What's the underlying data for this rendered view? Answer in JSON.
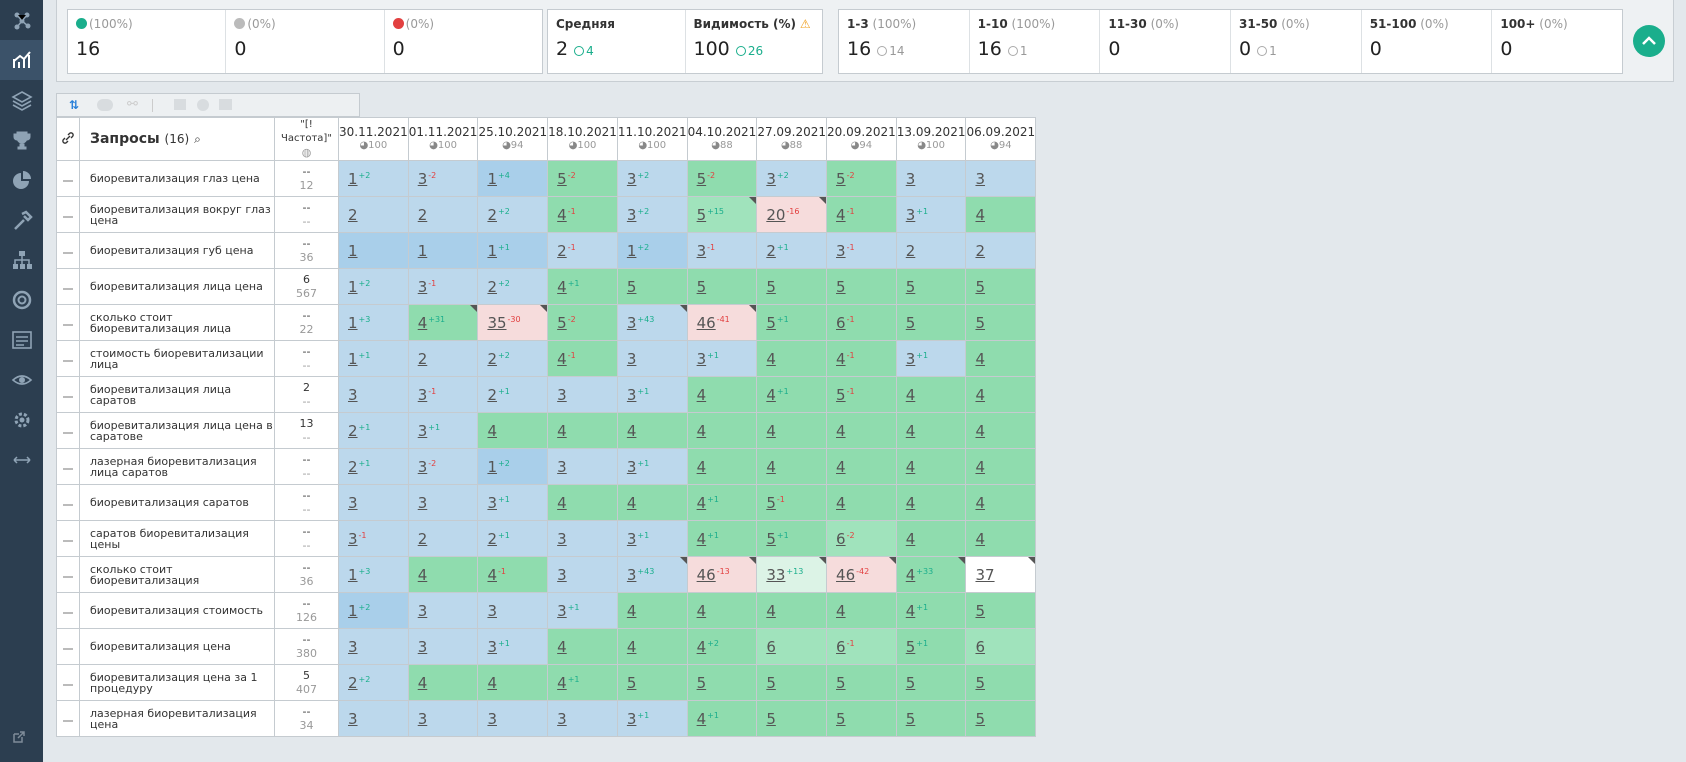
{
  "sidebar": {
    "items": [
      {
        "icon": "network-icon"
      },
      {
        "icon": "chart-growth-icon",
        "active": true
      },
      {
        "icon": "layers-icon"
      },
      {
        "icon": "trophy-icon"
      },
      {
        "icon": "pie-chart-icon"
      },
      {
        "icon": "hammer-icon"
      },
      {
        "icon": "sitemap-icon"
      },
      {
        "icon": "lifebuoy-icon"
      },
      {
        "icon": "list-settings-icon"
      },
      {
        "icon": "eye-icon"
      },
      {
        "icon": "gear-icon"
      },
      {
        "icon": "expand-arrows-icon"
      }
    ],
    "external_icon": "external-link-icon"
  },
  "summary": {
    "trend": [
      {
        "pct": "(100%)",
        "value": "16",
        "icon": "arrow-up-circle-icon"
      },
      {
        "pct": "(0%)",
        "value": "0",
        "icon": "minus-circle-icon"
      },
      {
        "pct": "(0%)",
        "value": "0",
        "icon": "arrow-down-circle-icon"
      }
    ],
    "avg": {
      "label": "Средняя",
      "value": "2",
      "delta": "4"
    },
    "visibility": {
      "label": "Видимость (%)",
      "value": "100",
      "delta": "26"
    },
    "ranges": [
      {
        "label": "1-3",
        "pct": "(100%)",
        "value": "16",
        "delta": "14"
      },
      {
        "label": "1-10",
        "pct": "(100%)",
        "value": "16",
        "delta": "1"
      },
      {
        "label": "11-30",
        "pct": "(0%)",
        "value": "0",
        "delta": ""
      },
      {
        "label": "31-50",
        "pct": "(0%)",
        "value": "0",
        "delta": "1"
      },
      {
        "label": "51-100",
        "pct": "(0%)",
        "value": "0",
        "delta": ""
      },
      {
        "label": "100+",
        "pct": "(0%)",
        "value": "0",
        "delta": ""
      }
    ]
  },
  "table": {
    "title": "Запросы",
    "count": "(16)",
    "freq_header": "\"[!Частота]\"",
    "dates": [
      {
        "date": "30.11.2021",
        "vis": "100"
      },
      {
        "date": "01.11.2021",
        "vis": "100"
      },
      {
        "date": "25.10.2021",
        "vis": "94"
      },
      {
        "date": "18.10.2021",
        "vis": "100"
      },
      {
        "date": "11.10.2021",
        "vis": "100"
      },
      {
        "date": "04.10.2021",
        "vis": "88"
      },
      {
        "date": "27.09.2021",
        "vis": "88"
      },
      {
        "date": "20.09.2021",
        "vis": "94"
      },
      {
        "date": "13.09.2021",
        "vis": "100"
      },
      {
        "date": "06.09.2021",
        "vis": "94"
      }
    ],
    "rows": [
      {
        "query": "биоревитализация глаз цена",
        "f1": "--",
        "f2": "12",
        "cells": [
          [
            "1",
            "+2",
            "b"
          ],
          [
            "3",
            "-2",
            "b"
          ],
          [
            "1",
            "+4",
            "b2"
          ],
          [
            "5",
            "-2",
            "g"
          ],
          [
            "3",
            "+2",
            "b"
          ],
          [
            "5",
            "-2",
            "g"
          ],
          [
            "3",
            "+2",
            "b"
          ],
          [
            "5",
            "-2",
            "g"
          ],
          [
            "3",
            "",
            "b"
          ],
          [
            "3",
            "",
            "b"
          ]
        ]
      },
      {
        "query": "биоревитализация вокруг глаз цена",
        "f1": "--",
        "f2": "--",
        "cells": [
          [
            "2",
            "",
            "b"
          ],
          [
            "2",
            "",
            "b"
          ],
          [
            "2",
            "+2",
            "b"
          ],
          [
            "4",
            "-1",
            "g"
          ],
          [
            "3",
            "+2",
            "b"
          ],
          [
            "5",
            "+15",
            "g2"
          ],
          [
            "20",
            "-16",
            "p"
          ],
          [
            "4",
            "-1",
            "g"
          ],
          [
            "3",
            "+1",
            "b"
          ],
          [
            "4",
            "",
            "g"
          ]
        ]
      },
      {
        "query": "биоревитализация губ цена",
        "f1": "--",
        "f2": "36",
        "cells": [
          [
            "1",
            "",
            "b2"
          ],
          [
            "1",
            "",
            "b2"
          ],
          [
            "1",
            "+1",
            "b2"
          ],
          [
            "2",
            "-1",
            "b"
          ],
          [
            "1",
            "+2",
            "b2"
          ],
          [
            "3",
            "-1",
            "b"
          ],
          [
            "2",
            "+1",
            "b"
          ],
          [
            "3",
            "-1",
            "b"
          ],
          [
            "2",
            "",
            "b"
          ],
          [
            "2",
            "",
            "b"
          ]
        ]
      },
      {
        "query": "биоревитализация лица цена",
        "f1": "6",
        "f2": "567",
        "cells": [
          [
            "1",
            "+2",
            "b"
          ],
          [
            "3",
            "-1",
            "b"
          ],
          [
            "2",
            "+2",
            "b"
          ],
          [
            "4",
            "+1",
            "g"
          ],
          [
            "5",
            "",
            "g"
          ],
          [
            "5",
            "",
            "g"
          ],
          [
            "5",
            "",
            "g"
          ],
          [
            "5",
            "",
            "g"
          ],
          [
            "5",
            "",
            "g"
          ],
          [
            "5",
            "",
            "g"
          ]
        ]
      },
      {
        "query": "сколько стоит биоревитализация лица",
        "f1": "--",
        "f2": "22",
        "cells": [
          [
            "1",
            "+3",
            "b"
          ],
          [
            "4",
            "+31",
            "g"
          ],
          [
            "35",
            "-30",
            "p"
          ],
          [
            "5",
            "-2",
            "g"
          ],
          [
            "3",
            "+43",
            "b"
          ],
          [
            "46",
            "-41",
            "p"
          ],
          [
            "5",
            "+1",
            "g"
          ],
          [
            "6",
            "-1",
            "g"
          ],
          [
            "5",
            "",
            "g"
          ],
          [
            "5",
            "",
            "g"
          ]
        ]
      },
      {
        "query": "стоимость биоревитализации лица",
        "f1": "--",
        "f2": "--",
        "cells": [
          [
            "1",
            "+1",
            "b"
          ],
          [
            "2",
            "",
            "b"
          ],
          [
            "2",
            "+2",
            "b"
          ],
          [
            "4",
            "-1",
            "g"
          ],
          [
            "3",
            "",
            "b"
          ],
          [
            "3",
            "+1",
            "b"
          ],
          [
            "4",
            "",
            "g"
          ],
          [
            "4",
            "-1",
            "g"
          ],
          [
            "3",
            "+1",
            "b"
          ],
          [
            "4",
            "",
            "g"
          ]
        ]
      },
      {
        "query": "биоревитализация лица саратов",
        "f1": "2",
        "f2": "--",
        "cells": [
          [
            "3",
            "",
            "b"
          ],
          [
            "3",
            "-1",
            "b"
          ],
          [
            "2",
            "+1",
            "b"
          ],
          [
            "3",
            "",
            "b"
          ],
          [
            "3",
            "+1",
            "b"
          ],
          [
            "4",
            "",
            "g"
          ],
          [
            "4",
            "+1",
            "g"
          ],
          [
            "5",
            "-1",
            "g"
          ],
          [
            "4",
            "",
            "g"
          ],
          [
            "4",
            "",
            "g"
          ]
        ]
      },
      {
        "query": "биоревитализация лица цена в саратове",
        "f1": "13",
        "f2": "--",
        "cells": [
          [
            "2",
            "+1",
            "b"
          ],
          [
            "3",
            "+1",
            "b"
          ],
          [
            "4",
            "",
            "g"
          ],
          [
            "4",
            "",
            "g"
          ],
          [
            "4",
            "",
            "g"
          ],
          [
            "4",
            "",
            "g"
          ],
          [
            "4",
            "",
            "g"
          ],
          [
            "4",
            "",
            "g"
          ],
          [
            "4",
            "",
            "g"
          ],
          [
            "4",
            "",
            "g"
          ]
        ]
      },
      {
        "query": "лазерная биоревитализация лица саратов",
        "f1": "--",
        "f2": "--",
        "cells": [
          [
            "2",
            "+1",
            "b"
          ],
          [
            "3",
            "-2",
            "b"
          ],
          [
            "1",
            "+2",
            "b2"
          ],
          [
            "3",
            "",
            "b"
          ],
          [
            "3",
            "+1",
            "b"
          ],
          [
            "4",
            "",
            "g"
          ],
          [
            "4",
            "",
            "g"
          ],
          [
            "4",
            "",
            "g"
          ],
          [
            "4",
            "",
            "g"
          ],
          [
            "4",
            "",
            "g"
          ]
        ]
      },
      {
        "query": "биоревитализация саратов",
        "f1": "--",
        "f2": "--",
        "cells": [
          [
            "3",
            "",
            "b"
          ],
          [
            "3",
            "",
            "b"
          ],
          [
            "3",
            "+1",
            "b"
          ],
          [
            "4",
            "",
            "g"
          ],
          [
            "4",
            "",
            "g"
          ],
          [
            "4",
            "+1",
            "g"
          ],
          [
            "5",
            "-1",
            "g"
          ],
          [
            "4",
            "",
            "g"
          ],
          [
            "4",
            "",
            "g"
          ],
          [
            "4",
            "",
            "g"
          ]
        ]
      },
      {
        "query": "саратов биоревитализация цены",
        "f1": "--",
        "f2": "--",
        "cells": [
          [
            "3",
            "-1",
            "b"
          ],
          [
            "2",
            "",
            "b"
          ],
          [
            "2",
            "+1",
            "b"
          ],
          [
            "3",
            "",
            "b"
          ],
          [
            "3",
            "+1",
            "b"
          ],
          [
            "4",
            "+1",
            "g"
          ],
          [
            "5",
            "+1",
            "g"
          ],
          [
            "6",
            "-2",
            "g2"
          ],
          [
            "4",
            "",
            "g"
          ],
          [
            "4",
            "",
            "g"
          ]
        ]
      },
      {
        "query": "сколько стоит биоревитализация",
        "f1": "--",
        "f2": "36",
        "cells": [
          [
            "1",
            "+3",
            "b"
          ],
          [
            "4",
            "",
            "g"
          ],
          [
            "4",
            "-1",
            "g"
          ],
          [
            "3",
            "",
            "b"
          ],
          [
            "3",
            "+43",
            "b"
          ],
          [
            "46",
            "-13",
            "p"
          ],
          [
            "33",
            "+13",
            "m"
          ],
          [
            "46",
            "-42",
            "p"
          ],
          [
            "4",
            "+33",
            "g"
          ],
          [
            "37",
            "",
            "w"
          ]
        ]
      },
      {
        "query": "биоревитализация стоимость",
        "f1": "--",
        "f2": "126",
        "cells": [
          [
            "1",
            "+2",
            "b2"
          ],
          [
            "3",
            "",
            "b"
          ],
          [
            "3",
            "",
            "b"
          ],
          [
            "3",
            "+1",
            "b"
          ],
          [
            "4",
            "",
            "g"
          ],
          [
            "4",
            "",
            "g"
          ],
          [
            "4",
            "",
            "g"
          ],
          [
            "4",
            "",
            "g"
          ],
          [
            "4",
            "+1",
            "g"
          ],
          [
            "5",
            "",
            "g"
          ]
        ]
      },
      {
        "query": "биоревитализация цена",
        "f1": "--",
        "f2": "380",
        "cells": [
          [
            "3",
            "",
            "b"
          ],
          [
            "3",
            "",
            "b"
          ],
          [
            "3",
            "+1",
            "b"
          ],
          [
            "4",
            "",
            "g"
          ],
          [
            "4",
            "",
            "g"
          ],
          [
            "4",
            "+2",
            "g"
          ],
          [
            "6",
            "",
            "g2"
          ],
          [
            "6",
            "-1",
            "g2"
          ],
          [
            "5",
            "+1",
            "g"
          ],
          [
            "6",
            "",
            "g2"
          ]
        ]
      },
      {
        "query": "биоревитализация цена за 1 процедуру",
        "f1": "5",
        "f2": "407",
        "cells": [
          [
            "2",
            "+2",
            "b"
          ],
          [
            "4",
            "",
            "g"
          ],
          [
            "4",
            "",
            "g"
          ],
          [
            "4",
            "+1",
            "g"
          ],
          [
            "5",
            "",
            "g"
          ],
          [
            "5",
            "",
            "g"
          ],
          [
            "5",
            "",
            "g"
          ],
          [
            "5",
            "",
            "g"
          ],
          [
            "5",
            "",
            "g"
          ],
          [
            "5",
            "",
            "g"
          ]
        ]
      },
      {
        "query": "лазерная биоревитализация цена",
        "f1": "--",
        "f2": "34",
        "cells": [
          [
            "3",
            "",
            "b"
          ],
          [
            "3",
            "",
            "b"
          ],
          [
            "3",
            "",
            "b"
          ],
          [
            "3",
            "",
            "b"
          ],
          [
            "3",
            "+1",
            "b"
          ],
          [
            "4",
            "+1",
            "g"
          ],
          [
            "5",
            "",
            "g"
          ],
          [
            "5",
            "",
            "g"
          ],
          [
            "5",
            "",
            "g"
          ],
          [
            "5",
            "",
            "g"
          ]
        ]
      }
    ]
  }
}
